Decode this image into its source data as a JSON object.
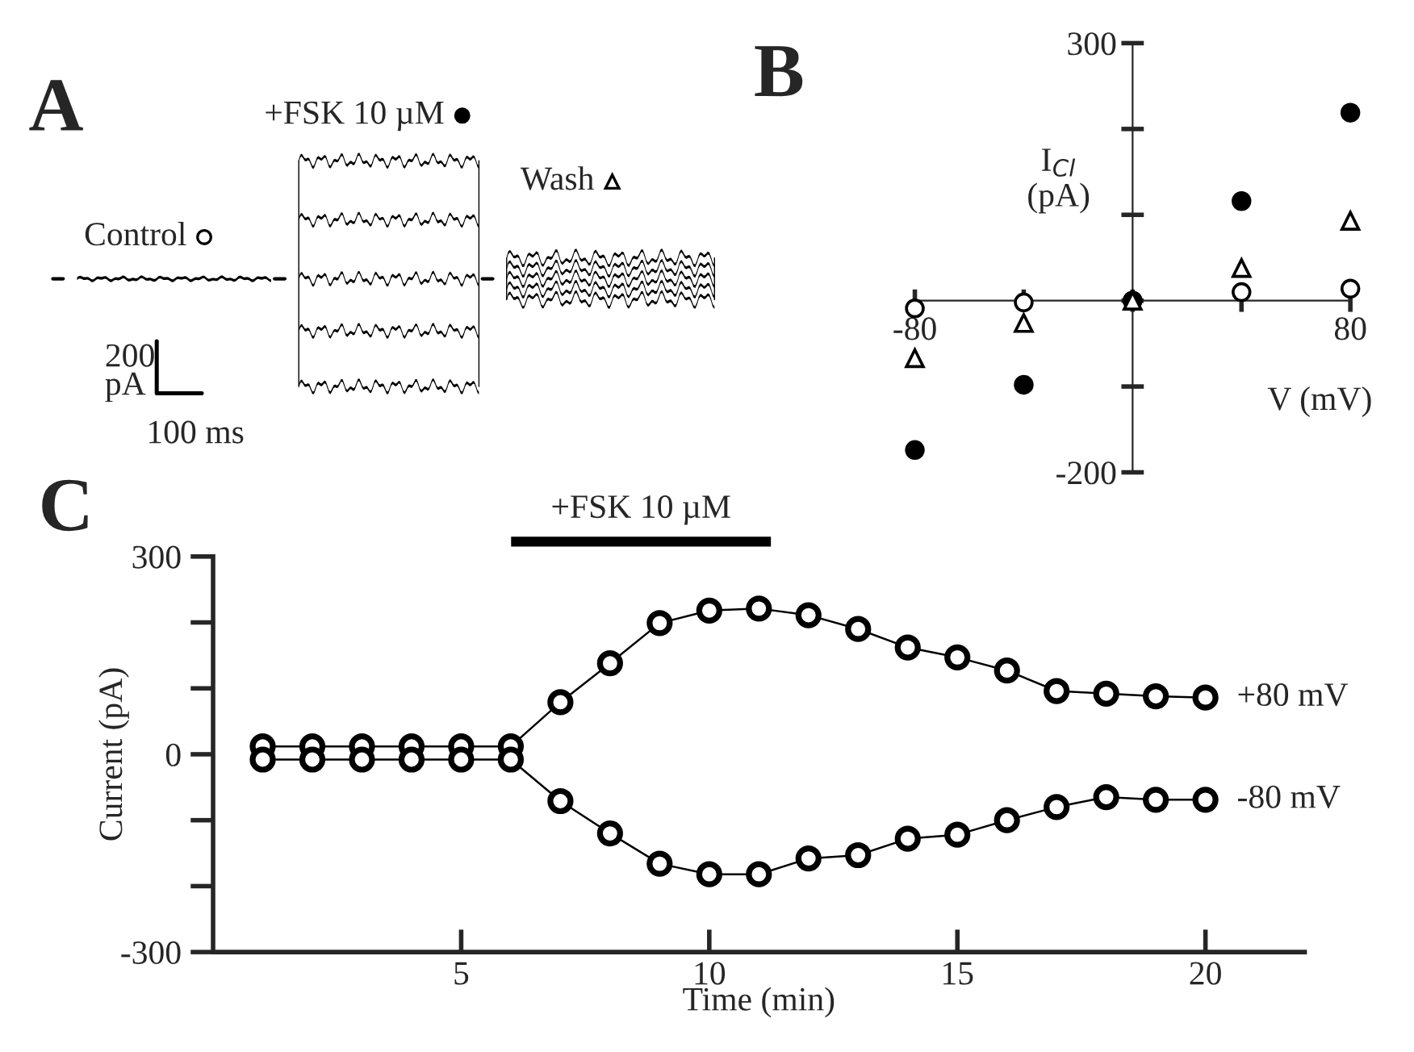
{
  "chart_data": [
    {
      "type": "other",
      "title": "A",
      "annotations": [
        "Control",
        "+FSK 10 µM",
        "Wash",
        "200\npA",
        "100 ms"
      ]
    },
    {
      "type": "scatter",
      "title": "B",
      "xlabel": "V (mV)",
      "ylabel": "I$_{Cl}$\n(pA)",
      "x": [
        -80,
        -40,
        0,
        40,
        80
      ],
      "xlim": [
        -80,
        80
      ],
      "xticks": [
        -80,
        {
          "value": -40,
          "label": null
        },
        {
          "value": 0,
          "label": null
        },
        {
          "value": 40,
          "label": null
        },
        80
      ],
      "ylim": [
        -200,
        300
      ],
      "yticks": [
        {
          "value": -200,
          "label": "-200"
        },
        {
          "value": -100,
          "label": null
        },
        {
          "value": 0,
          "label": null
        },
        {
          "value": 100,
          "label": null
        },
        {
          "value": 200,
          "label": null
        },
        300
      ],
      "grid": false,
      "legend": false,
      "series": [
        {
          "color": "#ffffff",
          "marker": "circle",
          "values": [
            -9,
            -2,
            0,
            10,
            14
          ]
        },
        {
          "color": "#000000",
          "marker": "circle",
          "values": [
            -174,
            -98,
            0,
            116,
            219
          ]
        },
        {
          "color": "#ffffff",
          "marker": "triangle",
          "values": [
            -67,
            -26,
            0,
            38,
            93
          ]
        }
      ]
    },
    {
      "type": "line",
      "title": "C",
      "xlabel": "Time (min)",
      "ylabel": "Current (pA)",
      "x": [
        1,
        2,
        3,
        4,
        5,
        6,
        7,
        8,
        9,
        10,
        11,
        12,
        13,
        14,
        15,
        16,
        17,
        18,
        19,
        20
      ],
      "xlim": [
        0,
        22
      ],
      "xticks": [
        5,
        10,
        15,
        20
      ],
      "ylim": [
        -300,
        300
      ],
      "yticks": [
        {
          "value": -300,
          "label": "-300"
        },
        {
          "value": -200,
          "label": null
        },
        {
          "value": -100,
          "label": null
        },
        0,
        {
          "value": 100,
          "label": null
        },
        {
          "value": 200,
          "label": null
        },
        300
      ],
      "marker": "circle",
      "line_style": "solid",
      "grid": false,
      "legend": false,
      "annotations": [
        "+FSK 10 µM"
      ],
      "series": [
        {
          "name": "+80 mV",
          "color": "#000000",
          "values": [
            12,
            12,
            12,
            12,
            12,
            12,
            79,
            138,
            199,
            218,
            221,
            211,
            190,
            162,
            147,
            127,
            96,
            92,
            88,
            86
          ]
        },
        {
          "name": "-80 mV",
          "color": "#000000",
          "values": [
            -8,
            -8,
            -8,
            -8,
            -8,
            -8,
            -71,
            -120,
            -166,
            -182,
            -182,
            -158,
            -153,
            -128,
            -122,
            -100,
            -80,
            -65,
            -69,
            -69
          ]
        }
      ]
    }
  ]
}
